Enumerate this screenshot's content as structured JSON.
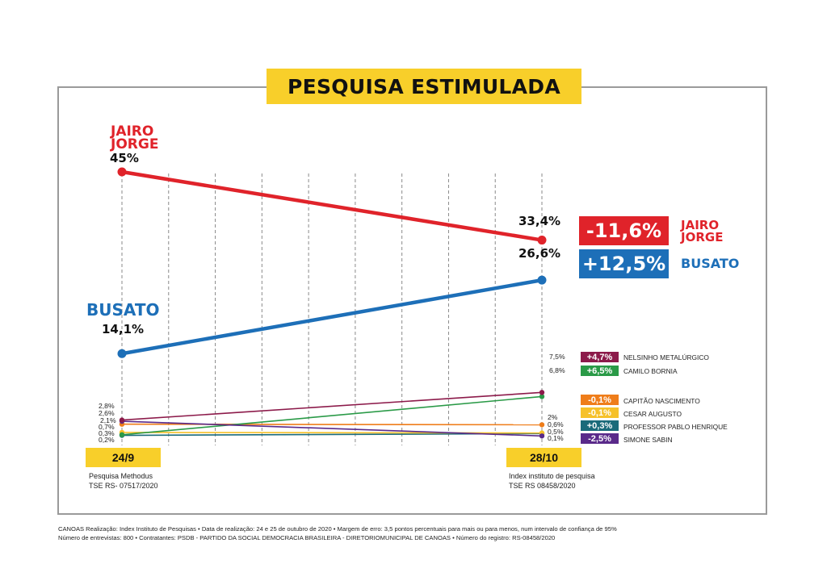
{
  "title": "PESQUISA ESTIMULADA",
  "chart_data": {
    "type": "line",
    "categories": [
      "24/9",
      "28/10"
    ],
    "series": [
      {
        "name": "JAIRO JORGE",
        "values": [
          45,
          33.4
        ],
        "labels": [
          "45%",
          "33,4%"
        ],
        "change": "-11,6%",
        "color": "#e0232a"
      },
      {
        "name": "BUSATO",
        "values": [
          14.1,
          26.6
        ],
        "labels": [
          "14,1%",
          "26,6%"
        ],
        "change": "+12,5%",
        "color": "#1d6fb8"
      },
      {
        "name": "NELSINHO METALÚRGICO",
        "values": [
          2.8,
          7.5
        ],
        "labels": [
          "2,8%",
          "7,5%"
        ],
        "change": "+4,7%",
        "color": "#8c1a4a"
      },
      {
        "name": "CAMILO BORNIA",
        "values": [
          0.3,
          6.8
        ],
        "labels": [
          "0,3%",
          "6,8%"
        ],
        "change": "+6,5%",
        "color": "#2a9a47"
      },
      {
        "name": "CAPITÃO NASCIMENTO",
        "values": [
          2.1,
          2.0
        ],
        "labels": [
          "2,1%",
          "2%"
        ],
        "change": "-0,1%",
        "color": "#ef7d1a"
      },
      {
        "name": "CESAR AUGUSTO",
        "values": [
          0.7,
          0.6
        ],
        "labels": [
          "0,7%",
          "0,6%"
        ],
        "change": "-0,1%",
        "color": "#f6c12a"
      },
      {
        "name": "PROFESSOR PABLO HENRIQUE",
        "values": [
          0.2,
          0.5
        ],
        "labels": [
          "0,2%",
          "0,5%"
        ],
        "change": "+0,3%",
        "color": "#1a6a7a"
      },
      {
        "name": "SIMONE SABIN",
        "values": [
          2.6,
          0.1
        ],
        "labels": [
          "2,6%",
          "0,1%"
        ],
        "change": "-2,5%",
        "color": "#5a2a8a"
      }
    ],
    "ylim": [
      0,
      45
    ],
    "grid": true
  },
  "sources": {
    "left_date": "24/9",
    "left_line1": "Pesquisa Methodus",
    "left_line2": "TSE RS- 07517/2020",
    "right_date": "28/10",
    "right_line1": "Index instituto de pesquisa",
    "right_line2": "TSE RS 08458/2020"
  },
  "footer": {
    "line1": "CANOAS Realização: Index Instituto de Pesquisas • Data de realização: 24 e 25 de outubro de 2020 • Margem de erro: 3,5 pontos percentuais para mais ou para menos, num intervalo de confiança de 95%",
    "line2": "Número de entrevistas: 800 • Contratantes:  PSDB - PARTIDO DA SOCIAL DEMOCRACIA BRASILEIRA - DIRETORIOMUNICIPAL DE CANOAS  • Número do registro: RS-08458/2020"
  },
  "big_labels": {
    "jairo_line1": "JAIRO",
    "jairo_line2": "JORGE",
    "busato": "BUSATO",
    "right_jairo_line1": "JAIRO",
    "right_jairo_line2": "JORGE",
    "right_busato": "BUSATO"
  }
}
